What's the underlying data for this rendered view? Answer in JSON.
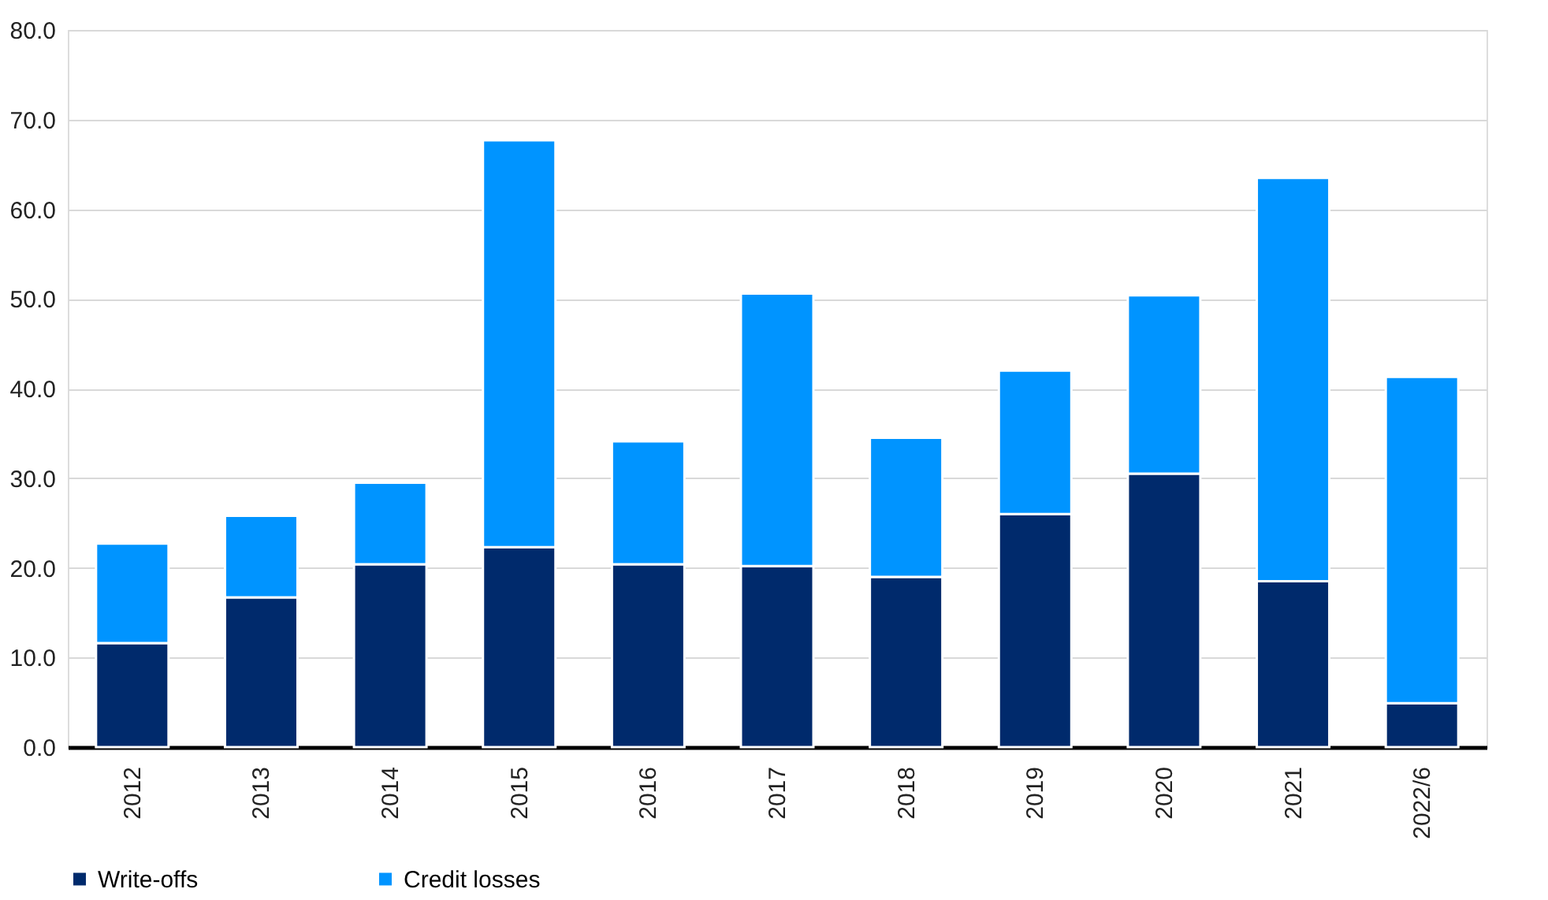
{
  "chart_data": {
    "type": "bar",
    "stacked": true,
    "categories": [
      "2012",
      "2013",
      "2014",
      "2015",
      "2016",
      "2017",
      "2018",
      "2019",
      "2020",
      "2021",
      "2022/6"
    ],
    "series": [
      {
        "name": "Write-offs",
        "color": "#002a6c",
        "values": [
          11.6,
          16.7,
          20.4,
          22.3,
          20.4,
          20.2,
          19.0,
          26.0,
          30.5,
          18.5,
          4.9
        ]
      },
      {
        "name": "Credit losses",
        "color": "#0094ff",
        "values": [
          11.1,
          9.1,
          9.1,
          45.4,
          13.7,
          30.4,
          15.5,
          16.0,
          19.9,
          45.0,
          36.4
        ]
      }
    ],
    "ylim": [
      0,
      80
    ],
    "yticks": [
      {
        "value": 0,
        "label": "0.0"
      },
      {
        "value": 10,
        "label": "10.0"
      },
      {
        "value": 20,
        "label": "20.0"
      },
      {
        "value": 30,
        "label": "30.0"
      },
      {
        "value": 40,
        "label": "40.0"
      },
      {
        "value": 50,
        "label": "50.0"
      },
      {
        "value": 60,
        "label": "60.0"
      },
      {
        "value": 70,
        "label": "70.0"
      },
      {
        "value": 80,
        "label": "80.0"
      }
    ],
    "grid": "y",
    "legend": "bottom"
  }
}
